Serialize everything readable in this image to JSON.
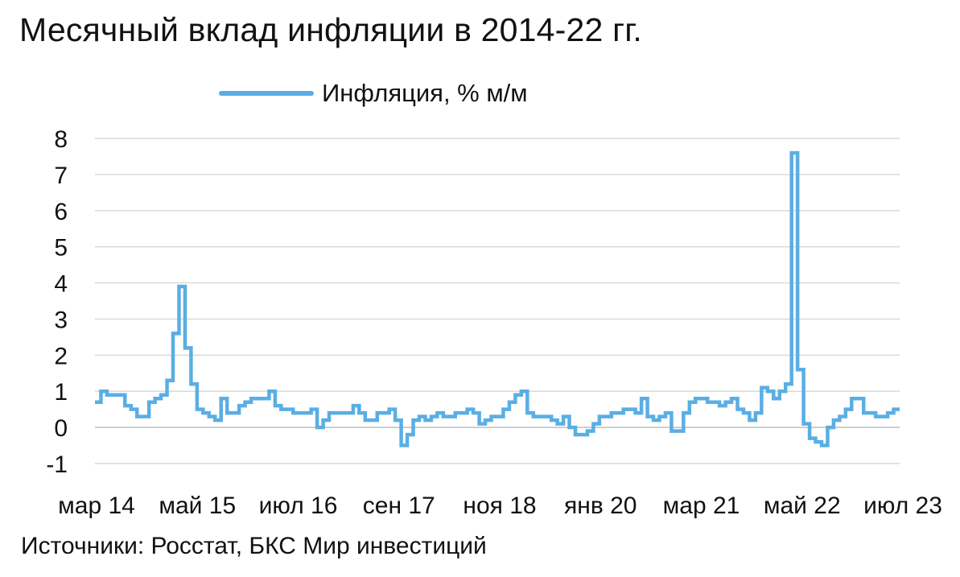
{
  "chart_data": {
    "type": "line",
    "title": "Месячный вклад инфляции в 2014-22 гг.",
    "legend_position": "top",
    "grid": true,
    "source": "Источники: Росстат, БКС Мир инвестиций",
    "ylim": [
      -1,
      8
    ],
    "y_ticks": [
      "8",
      "7",
      "6",
      "5",
      "4",
      "3",
      "2",
      "1",
      "0",
      "-1"
    ],
    "x_ticks": [
      "мар 14",
      "май 15",
      "июл 16",
      "сен 17",
      "ноя 18",
      "янв 20",
      "мар 21",
      "май 22",
      "июл 23"
    ],
    "step": true,
    "series": [
      {
        "name": "Инфляция, % м/м",
        "color": "#5aaee3",
        "start_month": "мар 14",
        "values": [
          0.7,
          1.0,
          0.9,
          0.9,
          0.9,
          0.6,
          0.5,
          0.3,
          0.3,
          0.7,
          0.8,
          0.9,
          1.3,
          2.6,
          3.9,
          2.2,
          1.2,
          0.5,
          0.4,
          0.3,
          0.2,
          0.8,
          0.4,
          0.4,
          0.6,
          0.7,
          0.8,
          0.8,
          0.8,
          1.0,
          0.6,
          0.5,
          0.5,
          0.4,
          0.4,
          0.4,
          0.5,
          0.0,
          0.2,
          0.4,
          0.4,
          0.4,
          0.4,
          0.6,
          0.4,
          0.2,
          0.2,
          0.4,
          0.4,
          0.5,
          0.2,
          -0.5,
          -0.2,
          0.2,
          0.3,
          0.2,
          0.3,
          0.4,
          0.3,
          0.3,
          0.4,
          0.4,
          0.5,
          0.4,
          0.1,
          0.2,
          0.3,
          0.3,
          0.5,
          0.7,
          0.9,
          1.0,
          0.4,
          0.3,
          0.3,
          0.3,
          0.2,
          0.1,
          0.3,
          0.0,
          -0.2,
          -0.2,
          -0.1,
          0.1,
          0.3,
          0.3,
          0.4,
          0.4,
          0.5,
          0.5,
          0.4,
          0.8,
          0.3,
          0.2,
          0.3,
          0.4,
          -0.1,
          -0.1,
          0.4,
          0.7,
          0.8,
          0.8,
          0.7,
          0.7,
          0.6,
          0.7,
          0.8,
          0.5,
          0.4,
          0.2,
          0.4,
          1.1,
          1.0,
          0.8,
          1.0,
          1.2,
          7.6,
          1.6,
          0.1,
          -0.3,
          -0.4,
          -0.5,
          0.0,
          0.2,
          0.3,
          0.5,
          0.8,
          0.8,
          0.4,
          0.4,
          0.3,
          0.3,
          0.4,
          0.5
        ]
      }
    ]
  }
}
